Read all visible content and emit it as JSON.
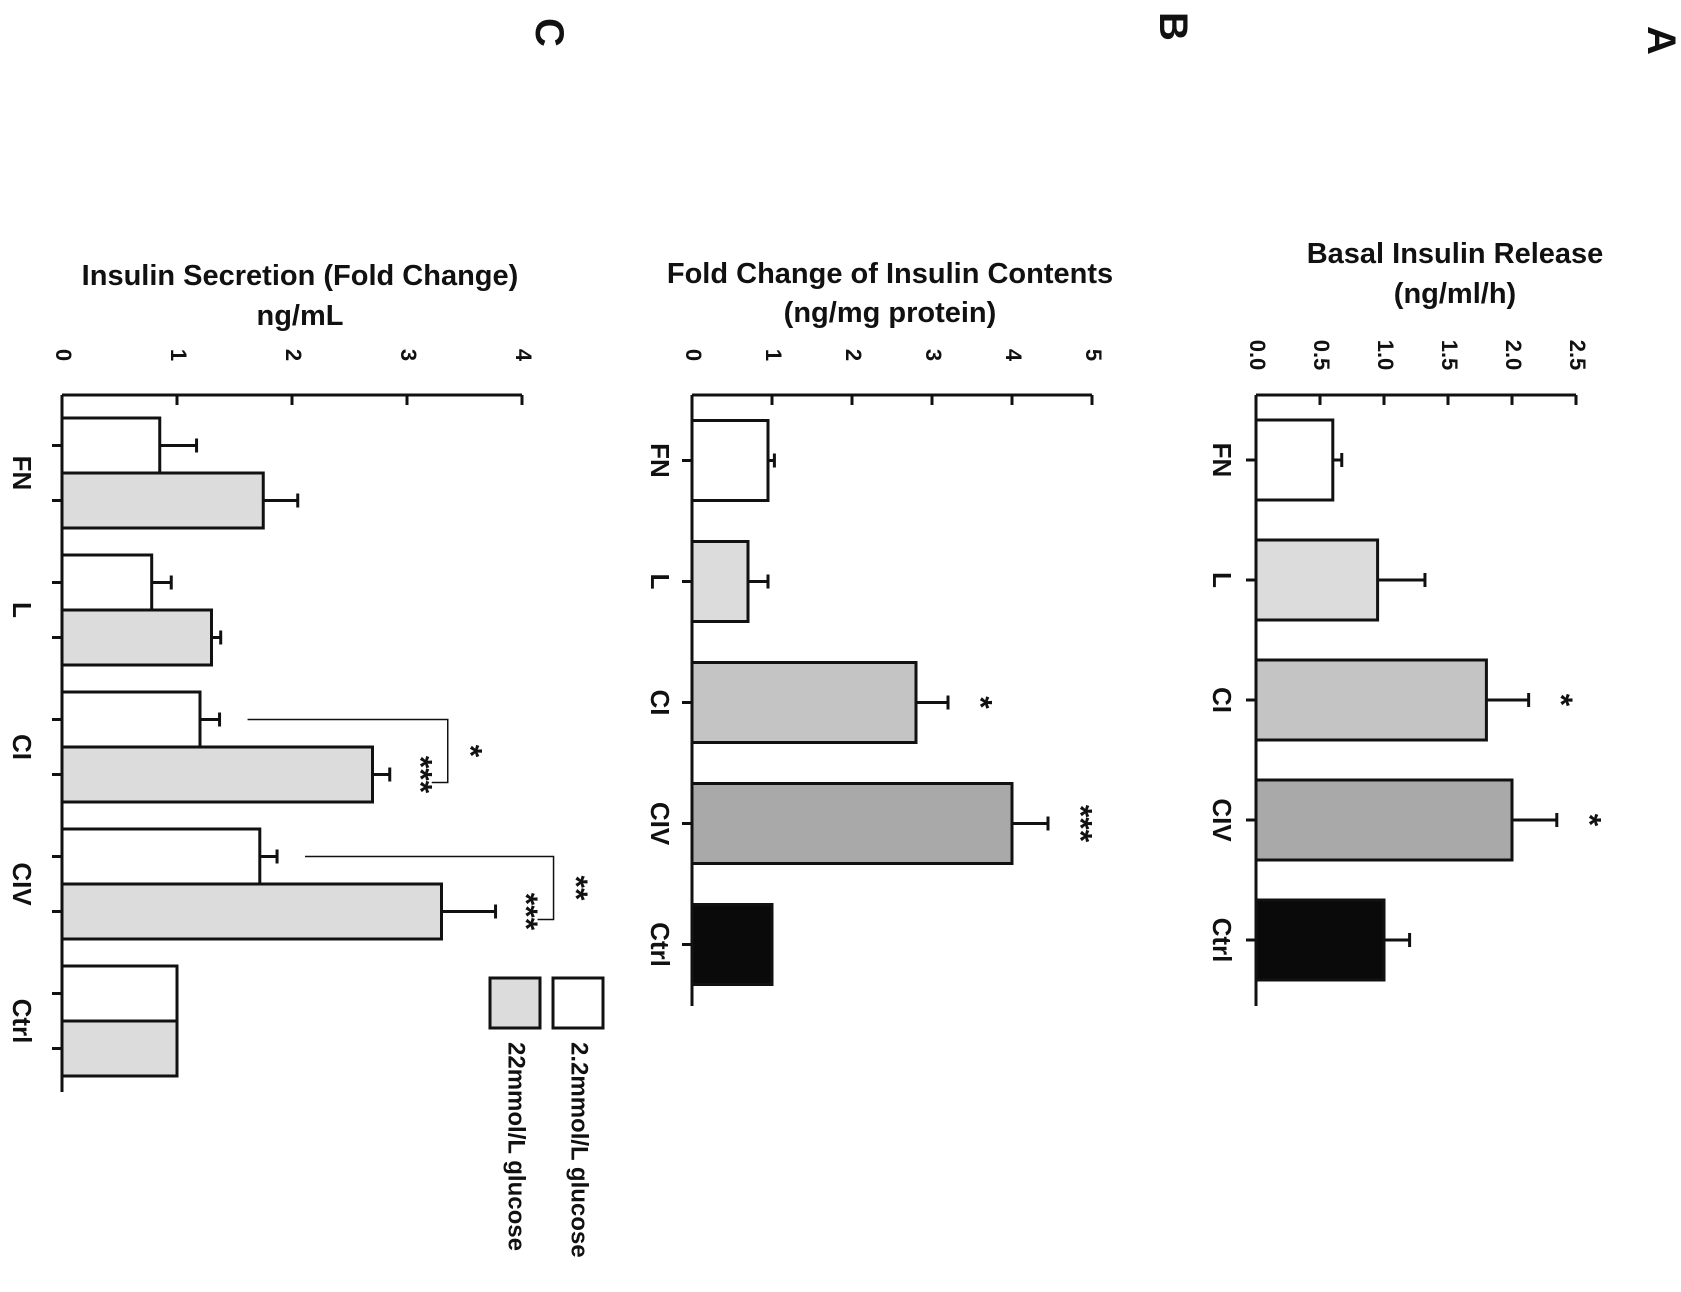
{
  "panels": [
    {
      "panel_label": "A",
      "title_lines": [
        "Basal Insulin Release",
        "(ng/ml/h)"
      ],
      "tick_labels": [
        "0.0",
        "0.5",
        "1.0",
        "1.5",
        "2.0",
        "2.5"
      ],
      "categories": [
        "FN",
        "L",
        "CI",
        "CIV",
        "Ctrl"
      ],
      "significance": [
        "",
        "",
        "*",
        "*",
        ""
      ]
    },
    {
      "panel_label": "B",
      "title_lines": [
        "Fold Change of Insulin Contents",
        "(ng/mg protein)"
      ],
      "tick_labels": [
        "0",
        "1",
        "2",
        "3",
        "4",
        "5"
      ],
      "categories": [
        "FN",
        "L",
        "CI",
        "CIV",
        "Ctrl"
      ],
      "significance": [
        "",
        "",
        "*",
        "***",
        ""
      ]
    },
    {
      "panel_label": "C",
      "title_lines": [
        "Insulin Secretion (Fold Change)",
        "ng/mL"
      ],
      "tick_labels": [
        "0",
        "1",
        "2",
        "3",
        "4"
      ],
      "categories": [
        "FN",
        "L",
        "CI",
        "CIV",
        "Ctrl"
      ],
      "significance_high": [
        "",
        "",
        "***",
        "***",
        ""
      ],
      "comparison_labels": [
        "",
        "",
        "*",
        "**",
        ""
      ],
      "legend": [
        "2.2mmol/L glucose",
        "22mmol/L glucose"
      ]
    }
  ],
  "colors": {
    "white": "#ffffff",
    "light_gray": "#dcdcdc",
    "mid_gray": "#c4c4c4",
    "dark_gray": "#a9a9a9",
    "black": "#0a0a0a",
    "glucose_high": "#dcdcdc"
  },
  "chart_data": [
    {
      "type": "bar",
      "categories": [
        "FN",
        "L",
        "CI",
        "CIV",
        "Ctrl"
      ],
      "values": [
        0.6,
        0.95,
        1.8,
        2.0,
        1.0
      ],
      "errors": [
        0.07,
        0.37,
        0.33,
        0.35,
        0.2
      ],
      "bar_colors": [
        "#ffffff",
        "#dcdcdc",
        "#c4c4c4",
        "#a9a9a9",
        "#0a0a0a"
      ],
      "ylim": [
        0,
        2.5
      ],
      "orientation": "rotated-90-clockwise",
      "grid": false
    },
    {
      "type": "bar",
      "categories": [
        "FN",
        "L",
        "CI",
        "CIV",
        "Ctrl"
      ],
      "values": [
        0.95,
        0.7,
        2.8,
        4.0,
        1.0
      ],
      "errors": [
        0.08,
        0.25,
        0.4,
        0.45,
        0.0
      ],
      "bar_colors": [
        "#ffffff",
        "#dcdcdc",
        "#c4c4c4",
        "#a9a9a9",
        "#0a0a0a"
      ],
      "ylim": [
        0,
        5
      ],
      "orientation": "rotated-90-clockwise",
      "grid": false
    },
    {
      "type": "bar",
      "categories": [
        "FN",
        "L",
        "CI",
        "CIV",
        "Ctrl"
      ],
      "series": [
        {
          "name": "2.2mmol/L glucose",
          "values": [
            0.85,
            0.78,
            1.2,
            1.72,
            1.0
          ],
          "errors": [
            0.32,
            0.17,
            0.17,
            0.15,
            0.0
          ]
        },
        {
          "name": "22mmol/L glucose",
          "values": [
            1.75,
            1.3,
            2.7,
            3.3,
            1.0
          ],
          "errors": [
            0.3,
            0.08,
            0.15,
            0.47,
            0.0
          ]
        }
      ],
      "ylim": [
        0,
        4
      ],
      "legend_position": "right",
      "orientation": "rotated-90-clockwise",
      "grid": false
    }
  ]
}
